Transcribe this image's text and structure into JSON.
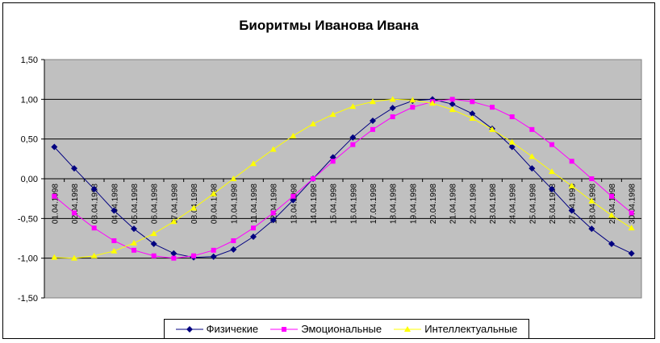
{
  "chart_data": {
    "type": "line",
    "title": "Биоритмы Иванова Ивана",
    "xlabel": "",
    "ylabel": "",
    "ylim": [
      -1.5,
      1.5
    ],
    "yticks": [
      "1,50",
      "1,00",
      "0,50",
      "0,00",
      "-0,50",
      "-1,00",
      "-1,50"
    ],
    "grid": true,
    "legend_position": "bottom",
    "x": [
      "01.04.1998",
      "02.04.1998",
      "03.04.1998",
      "04.04.1998",
      "05.04.1998",
      "06.04.1998",
      "07.04.1998",
      "08.04.1998",
      "09.04.1998",
      "10.04.1998",
      "11.04.1998",
      "12.04.1998",
      "13.04.1998",
      "14.04.1998",
      "15.04.1998",
      "16.04.1998",
      "17.04.1998",
      "18.04.1998",
      "19.04.1998",
      "20.04.1998",
      "21.04.1998",
      "22.04.1998",
      "23.04.1998",
      "24.04.1998",
      "25.04.1998",
      "26.04.1998",
      "27.04.1998",
      "28.04.1998",
      "29.04.1998",
      "30.04.1998"
    ],
    "series": [
      {
        "name": "Физичекие",
        "color": "#000080",
        "marker": "diamond",
        "values": [
          0.4,
          0.13,
          -0.13,
          -0.4,
          -0.63,
          -0.82,
          -0.94,
          -0.99,
          -0.98,
          -0.89,
          -0.73,
          -0.52,
          -0.27,
          0.0,
          0.27,
          0.52,
          0.73,
          0.89,
          0.98,
          1.0,
          0.94,
          0.82,
          0.63,
          0.4,
          0.13,
          -0.13,
          -0.4,
          -0.63,
          -0.82,
          -0.94
        ]
      },
      {
        "name": "Эмоциональные",
        "color": "#ff00ff",
        "marker": "square",
        "values": [
          -0.22,
          -0.43,
          -0.62,
          -0.78,
          -0.9,
          -0.97,
          -1.0,
          -0.97,
          -0.9,
          -0.78,
          -0.62,
          -0.43,
          -0.22,
          0.0,
          0.22,
          0.43,
          0.62,
          0.78,
          0.9,
          0.97,
          1.0,
          0.97,
          0.9,
          0.78,
          0.62,
          0.43,
          0.22,
          0.0,
          -0.22,
          -0.43
        ]
      },
      {
        "name": "Интеллектуальные",
        "color": "#ffff00",
        "marker": "triangle",
        "values": [
          -0.99,
          -1.0,
          -0.97,
          -0.91,
          -0.81,
          -0.69,
          -0.54,
          -0.37,
          -0.19,
          0.0,
          0.19,
          0.37,
          0.54,
          0.69,
          0.81,
          0.91,
          0.97,
          1.0,
          0.99,
          0.95,
          0.87,
          0.76,
          0.62,
          0.46,
          0.28,
          0.09,
          -0.09,
          -0.28,
          -0.46,
          -0.62
        ]
      }
    ]
  },
  "colors": {
    "plot_background": "#c0c0c0",
    "gridline": "#000000"
  }
}
